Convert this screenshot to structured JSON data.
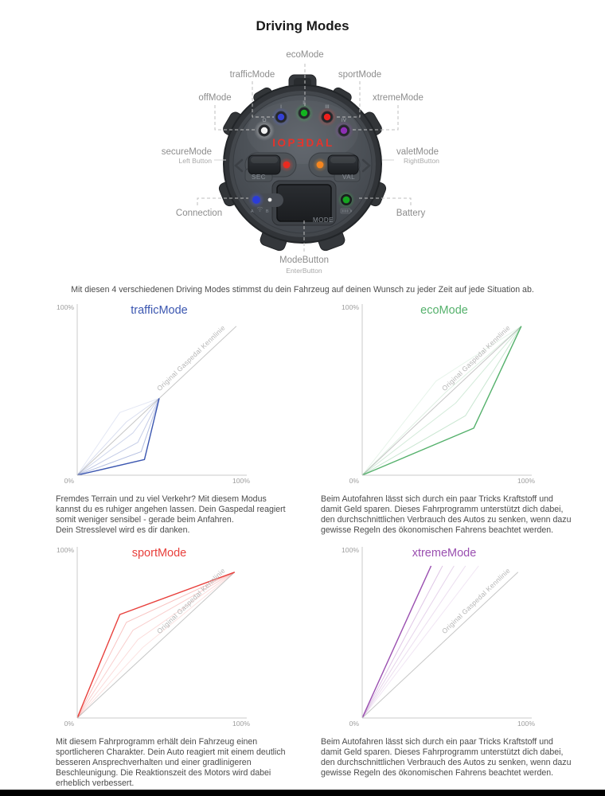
{
  "page": {
    "title": "Driving Modes",
    "intro": "Mit diesen 4 verschiedenen Driving Modes stimmst du dein Fahrzeug auf deinen Wunsch zu jeder Zeit auf jede Situation ab."
  },
  "device": {
    "brand": "IOPƎDAL",
    "mode_leds": [
      {
        "numeral": "O",
        "color": "#f2f2f2"
      },
      {
        "numeral": "I",
        "color": "#3440d6"
      },
      {
        "numeral": "II",
        "color": "#13b31f"
      },
      {
        "numeral": "III",
        "color": "#ef1f1c"
      },
      {
        "numeral": "IV",
        "color": "#8d2fb5"
      }
    ],
    "status_led_colors": {
      "secure": "#ea2a20",
      "valet": "#f6861f",
      "connection": "#2b3cd8",
      "battery": "#14a51f"
    },
    "labels": {
      "eco": "ecoMode",
      "traffic": "trafficMode",
      "sport": "sportMode",
      "off": "offMode",
      "xtreme": "xtremeMode",
      "secure": "secureMode",
      "secure_sub": "Left Button",
      "valet": "valetMode",
      "valet_sub": "RightButton",
      "connection": "Connection",
      "battery": "Battery",
      "mode_button": "ModeButton",
      "mode_button_sub": "EnterButton"
    },
    "button_labels": {
      "sec": "SEC",
      "val": "VAL",
      "mode": "MODE",
      "a": "A",
      "b": "B"
    }
  },
  "chart_data": [
    {
      "type": "line",
      "title": "trafficMode",
      "title_color": "#3b56b0",
      "y_max_label": "100%",
      "origin_label": "0%",
      "x_max_label": "100%",
      "xlim": [
        0,
        100
      ],
      "ylim": [
        0,
        100
      ],
      "overlay_label": "Original Gaspedal Kennlinie",
      "description": "Fremdes Terrain und zu viel Verkehr? Mit diesem Modus\nkannst du es ruhiger angehen lassen. Dein Gaspedal reagiert\nsomit weniger sensibel - gerade beim Anfahren.\nDein Stresslevel wird es dir danken.",
      "series": [
        {
          "name": "original-kennlinie",
          "color": "#c6c6c6",
          "width": 1,
          "opacity": 1,
          "points": [
            [
              0,
              0
            ],
            [
              97,
              95
            ]
          ]
        },
        {
          "name": "fade-1",
          "color": "#3b56b0",
          "width": 1,
          "opacity": 0.14,
          "points": [
            [
              0,
              0
            ],
            [
              26,
              40
            ],
            [
              50,
              49
            ]
          ]
        },
        {
          "name": "fade-2",
          "color": "#3b56b0",
          "width": 1,
          "opacity": 0.19,
          "points": [
            [
              0,
              0
            ],
            [
              30,
              34
            ],
            [
              50,
              49
            ]
          ]
        },
        {
          "name": "fade-3",
          "color": "#3b56b0",
          "width": 1,
          "opacity": 0.24,
          "points": [
            [
              0,
              0
            ],
            [
              34,
              27
            ],
            [
              50,
              49
            ]
          ]
        },
        {
          "name": "fade-4",
          "color": "#3b56b0",
          "width": 1,
          "opacity": 0.3,
          "points": [
            [
              0,
              0
            ],
            [
              37,
              21
            ],
            [
              50,
              49
            ]
          ]
        },
        {
          "name": "fade-5",
          "color": "#3b56b0",
          "width": 1,
          "opacity": 0.38,
          "points": [
            [
              0,
              0
            ],
            [
              39,
              15
            ],
            [
              50,
              49
            ]
          ]
        },
        {
          "name": "mode-line",
          "color": "#3b56b0",
          "width": 1.4,
          "opacity": 1,
          "points": [
            [
              0,
              0
            ],
            [
              41,
              10
            ],
            [
              50,
              49
            ]
          ]
        }
      ]
    },
    {
      "type": "line",
      "title": "ecoMode",
      "title_color": "#55b16c",
      "y_max_label": "100%",
      "origin_label": "0%",
      "x_max_label": "100%",
      "xlim": [
        0,
        100
      ],
      "ylim": [
        0,
        100
      ],
      "overlay_label": "Original Gaspedal Kennlinie",
      "description": "Beim Autofahren lässt sich durch ein paar Tricks Kraftstoff und\ndamit Geld sparen. Dieses Fahrprogramm unterstützt dich dabei,\nden durchschnittlichen Verbrauch des Autos zu senken,  wenn dazu\ngewisse Regeln des ökonomischen Fahrens beachtet werden.",
      "series": [
        {
          "name": "original-kennlinie",
          "color": "#c6c6c6",
          "width": 1,
          "opacity": 1,
          "points": [
            [
              0,
              0
            ],
            [
              97,
              95
            ]
          ]
        },
        {
          "name": "fade-1",
          "color": "#55b16c",
          "width": 1,
          "opacity": 0.14,
          "points": [
            [
              0,
              0
            ],
            [
              45,
              60
            ],
            [
              97,
              95
            ]
          ]
        },
        {
          "name": "fade-2",
          "color": "#55b16c",
          "width": 1,
          "opacity": 0.19,
          "points": [
            [
              0,
              0
            ],
            [
              51,
              53
            ],
            [
              97,
              95
            ]
          ]
        },
        {
          "name": "fade-3",
          "color": "#55b16c",
          "width": 1,
          "opacity": 0.25,
          "points": [
            [
              0,
              0
            ],
            [
              57,
              46
            ],
            [
              97,
              95
            ]
          ]
        },
        {
          "name": "fade-4",
          "color": "#55b16c",
          "width": 1,
          "opacity": 0.32,
          "points": [
            [
              0,
              0
            ],
            [
              63,
              38
            ],
            [
              97,
              95
            ]
          ]
        },
        {
          "name": "mode-line",
          "color": "#55b16c",
          "width": 1.4,
          "opacity": 1,
          "points": [
            [
              0,
              0
            ],
            [
              68,
              30
            ],
            [
              97,
              95
            ]
          ]
        }
      ]
    },
    {
      "type": "line",
      "title": "sportMode",
      "title_color": "#e8403c",
      "y_max_label": "100%",
      "origin_label": "0%",
      "x_max_label": "100%",
      "xlim": [
        0,
        100
      ],
      "ylim": [
        0,
        100
      ],
      "overlay_label": "Original Gaspedal Kennlinie",
      "description": "Mit diesem Fahrprogramm erhält dein Fahrzeug einen\nsportlicheren Charakter. Dein Auto reagiert mit einem deutlich\nbesseren Ansprechverhalten und einer gradlinigeren\nBeschleunigung. Die Reaktionszeit des Motors wird dabei\nerheblich verbessert.",
      "series": [
        {
          "name": "original-kennlinie",
          "color": "#c6c6c6",
          "width": 1,
          "opacity": 1,
          "points": [
            [
              0,
              0
            ],
            [
              96,
              93
            ]
          ]
        },
        {
          "name": "fade-1",
          "color": "#e8403c",
          "width": 1,
          "opacity": 0.14,
          "points": [
            [
              0,
              0
            ],
            [
              40,
              45
            ],
            [
              96,
              93
            ]
          ]
        },
        {
          "name": "fade-2",
          "color": "#e8403c",
          "width": 1,
          "opacity": 0.19,
          "points": [
            [
              0,
              0
            ],
            [
              37,
              50
            ],
            [
              96,
              93
            ]
          ]
        },
        {
          "name": "fade-3",
          "color": "#e8403c",
          "width": 1,
          "opacity": 0.25,
          "points": [
            [
              0,
              0
            ],
            [
              34,
              56
            ],
            [
              96,
              93
            ]
          ]
        },
        {
          "name": "fade-4",
          "color": "#e8403c",
          "width": 1,
          "opacity": 0.32,
          "points": [
            [
              0,
              0
            ],
            [
              30,
              61
            ],
            [
              96,
              93
            ]
          ]
        },
        {
          "name": "mode-line",
          "color": "#e8403c",
          "width": 1.4,
          "opacity": 1,
          "points": [
            [
              0,
              0
            ],
            [
              26,
              66
            ],
            [
              96,
              93
            ]
          ]
        }
      ]
    },
    {
      "type": "line",
      "title": "xtremeMode",
      "title_color": "#9a4fb0",
      "y_max_label": "100%",
      "origin_label": "0%",
      "x_max_label": "100%",
      "xlim": [
        0,
        100
      ],
      "ylim": [
        0,
        100
      ],
      "overlay_label": "Original Gaspedal Kennlinie",
      "description": "Beim Autofahren lässt sich durch ein paar Tricks Kraftstoff und\ndamit Geld sparen. Dieses Fahrprogramm unterstützt dich dabei,\nden durchschnittlichen Verbrauch des Autos zu senken,  wenn dazu\ngewisse Regeln des ökonomischen Fahrens beachtet werden.",
      "series": [
        {
          "name": "original-kennlinie",
          "color": "#c6c6c6",
          "width": 1,
          "opacity": 1,
          "points": [
            [
              0,
              0
            ],
            [
              95,
              93
            ]
          ]
        },
        {
          "name": "fade-1",
          "color": "#9a4fb0",
          "width": 1,
          "opacity": 0.14,
          "points": [
            [
              0,
              0
            ],
            [
              71,
              97
            ]
          ]
        },
        {
          "name": "fade-2",
          "color": "#9a4fb0",
          "width": 1,
          "opacity": 0.19,
          "points": [
            [
              0,
              0
            ],
            [
              63,
              97
            ]
          ]
        },
        {
          "name": "fade-3",
          "color": "#9a4fb0",
          "width": 1,
          "opacity": 0.25,
          "points": [
            [
              0,
              0
            ],
            [
              56,
              97
            ]
          ]
        },
        {
          "name": "fade-4",
          "color": "#9a4fb0",
          "width": 1,
          "opacity": 0.32,
          "points": [
            [
              0,
              0
            ],
            [
              49,
              97
            ]
          ]
        },
        {
          "name": "mode-line",
          "color": "#9a4fb0",
          "width": 1.4,
          "opacity": 1,
          "points": [
            [
              0,
              0
            ],
            [
              42,
              97
            ]
          ]
        }
      ]
    }
  ]
}
